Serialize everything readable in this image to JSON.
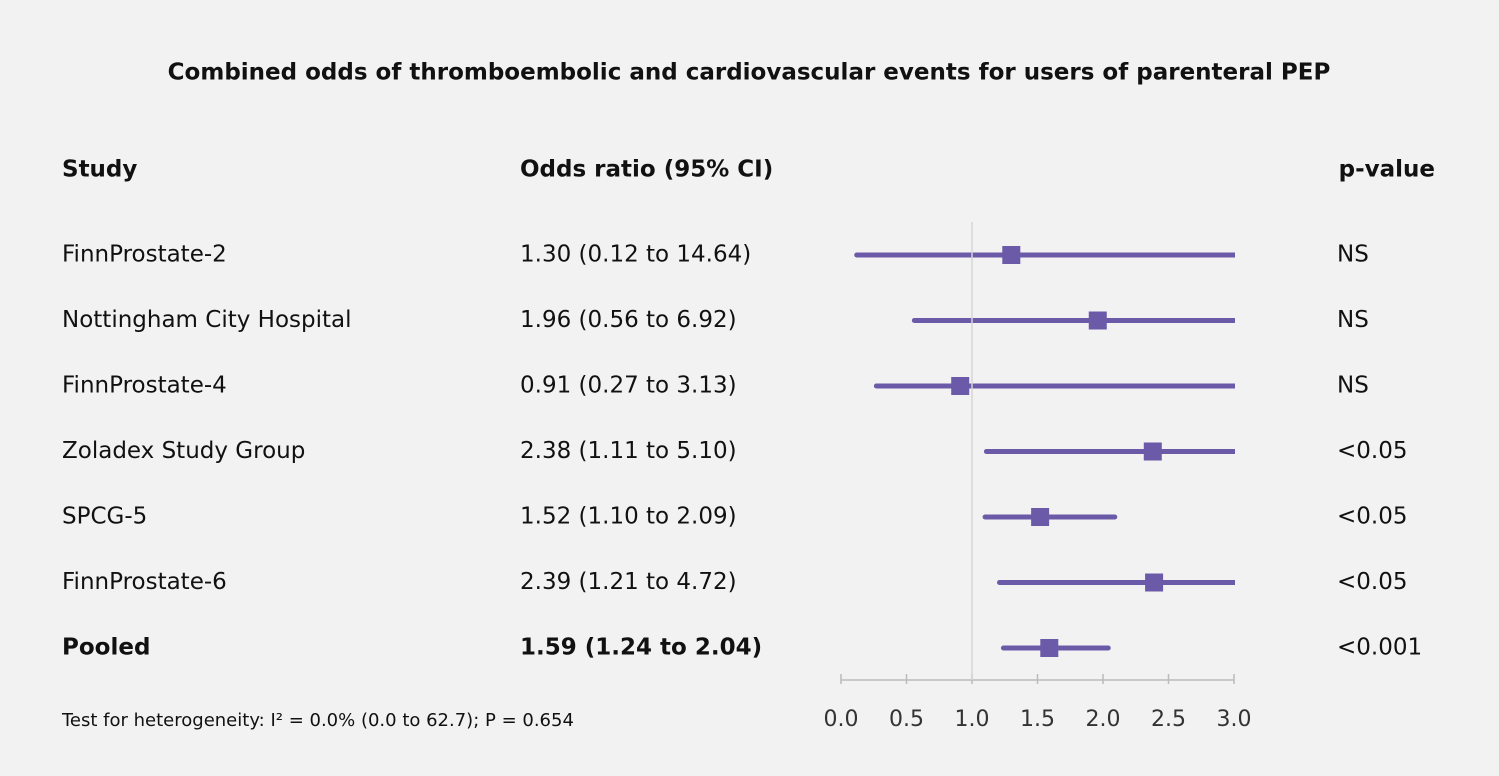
{
  "chart_data": {
    "type": "forest",
    "title": "Combined odds of thromboembolic and cardiovascular events for users of parenteral PEP",
    "columns": {
      "study": "Study",
      "estimate": "Odds ratio (95% CI)",
      "p": "p-value"
    },
    "categories": [
      "FinnProstate-2",
      "Nottingham City Hospital",
      "FinnProstate-4",
      "Zoladex Study Group",
      "SPCG-5",
      "FinnProstate-6",
      "Pooled"
    ],
    "values": [
      1.3,
      1.96,
      0.91,
      2.38,
      1.52,
      2.39,
      1.59
    ],
    "lower": [
      0.12,
      0.56,
      0.27,
      1.11,
      1.1,
      1.21,
      1.24
    ],
    "upper": [
      14.64,
      6.92,
      3.13,
      5.1,
      2.09,
      4.72,
      2.04
    ],
    "value_labels": [
      "1.30 (0.12 to 14.64)",
      "1.96 (0.56 to 6.92)",
      "0.91 (0.27 to 3.13)",
      "2.38 (1.11 to 5.10)",
      "1.52 (1.10 to 2.09)",
      "2.39 (1.21 to 4.72)",
      "1.59 (1.24 to 2.04)"
    ],
    "p_values": [
      "NS",
      "NS",
      "NS",
      "<0.05",
      "<0.05",
      "<0.05",
      "<0.001"
    ],
    "color": "#6a5aa8",
    "reference_line": 1,
    "xlim": [
      0,
      3
    ],
    "xticks": [
      {
        "value": 0,
        "label": "0.0"
      },
      {
        "value": 0.5,
        "label": "0.5"
      },
      {
        "value": 1,
        "label": "1.0"
      },
      {
        "value": 1.5,
        "label": "1.5"
      },
      {
        "value": 2,
        "label": "2.0"
      },
      {
        "value": 2.5,
        "label": "2.5"
      },
      {
        "value": 3,
        "label": "3.0"
      }
    ],
    "footnote": "Test for heterogeneity: I² = 0.0% (0.0 to 62.7); P = 0.654"
  }
}
